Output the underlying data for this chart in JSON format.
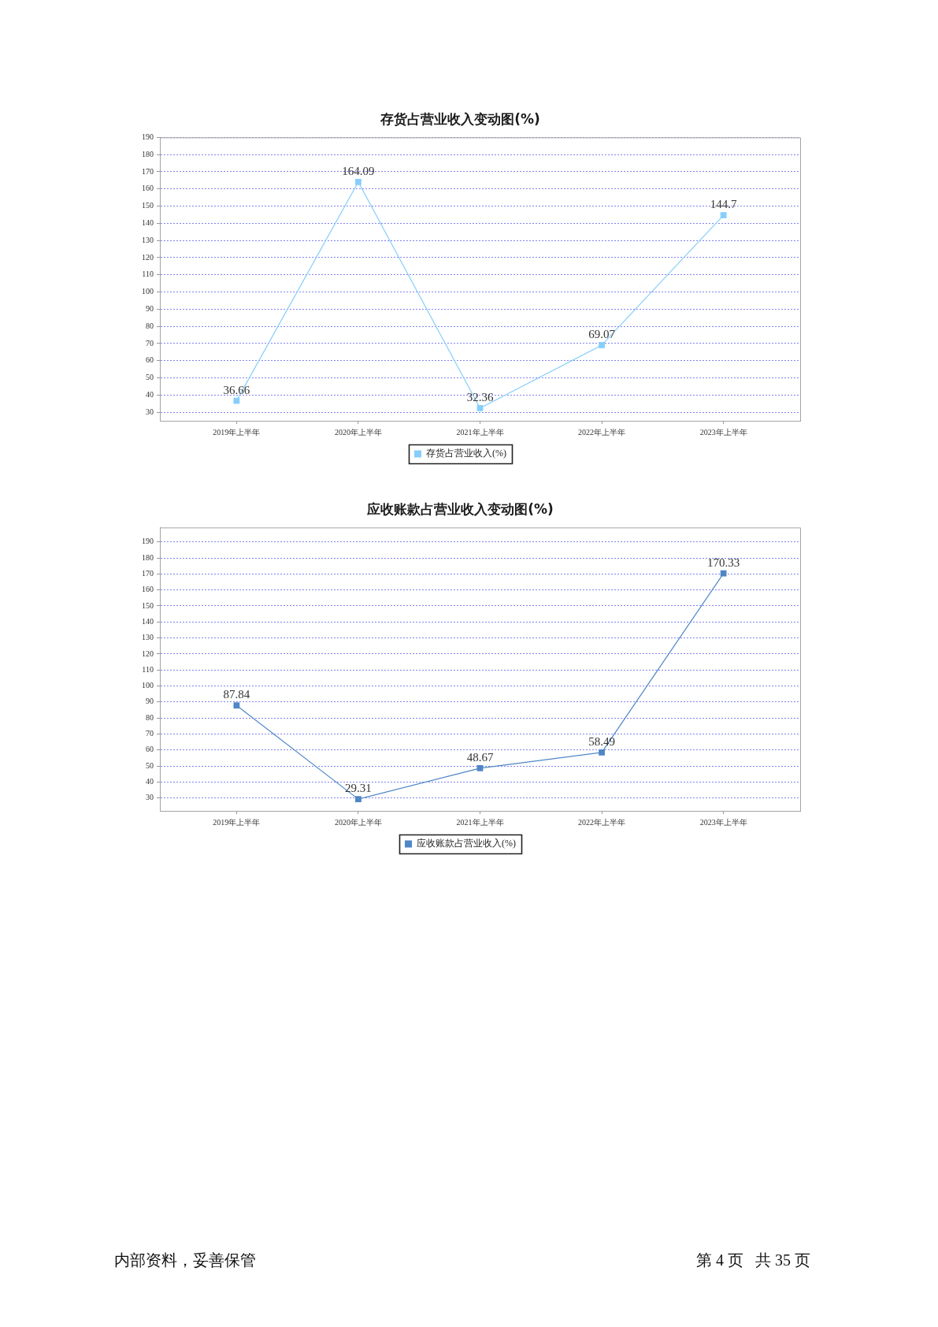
{
  "chart_data": [
    {
      "type": "line",
      "title": "存货占营业收入变动图(%)",
      "categories": [
        "2019年上半年",
        "2020年上半年",
        "2021年上半年",
        "2022年上半年",
        "2023年上半年"
      ],
      "series": [
        {
          "name": "存货占营业收入(%)",
          "color": "#87cefa",
          "values": [
            36.66,
            164.09,
            32.36,
            69.07,
            144.7
          ]
        }
      ],
      "ylim": [
        25,
        190
      ],
      "yticks": [
        30,
        40,
        50,
        60,
        70,
        80,
        90,
        100,
        110,
        120,
        130,
        140,
        150,
        160,
        170,
        180,
        190
      ],
      "grid": "y",
      "legend": "bottom",
      "marker": "square",
      "line_style": "solid",
      "data_labels": true
    },
    {
      "type": "line",
      "title": "应收账款占营业收入变动图(%)",
      "categories": [
        "2019年上半年",
        "2020年上半年",
        "2021年上半年",
        "2022年上半年",
        "2023年上半年"
      ],
      "series": [
        {
          "name": "应收账款占营业收入(%)",
          "color": "#4f86c6",
          "values": [
            87.84,
            29.31,
            48.67,
            58.49,
            170.33
          ]
        }
      ],
      "ylim": [
        22,
        199
      ],
      "yticks": [
        30,
        40,
        50,
        60,
        70,
        80,
        90,
        100,
        110,
        120,
        130,
        140,
        150,
        160,
        170,
        180,
        190
      ],
      "grid": "y",
      "legend": "bottom",
      "marker": "square",
      "line_style": "solid",
      "data_labels": true,
      "annotations": [
        "内部资料，妥善保管",
        "第 4 页   共 35 页"
      ]
    }
  ]
}
